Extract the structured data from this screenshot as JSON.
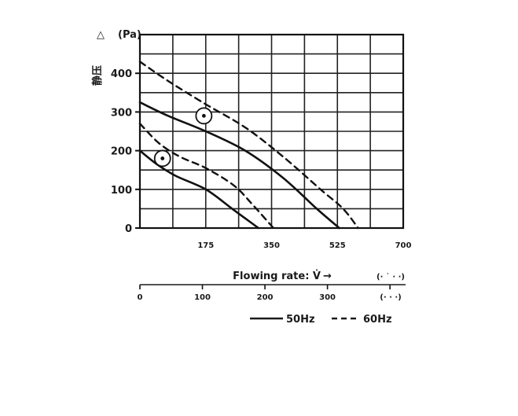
{
  "chart_data": {
    "type": "line",
    "y_axis": {
      "label_cjk": "静压",
      "label_symbol": "△",
      "unit": "(Pa)",
      "ticks": [
        0,
        100,
        200,
        300,
        400
      ],
      "ylim": [
        0,
        500
      ]
    },
    "x_axis_main": {
      "ticks": [
        "175",
        "350",
        "525",
        "700"
      ],
      "xlim": [
        0,
        700
      ]
    },
    "x_axis_secondary": {
      "label": "Flowing rate: V̇",
      "arrow": "→",
      "unit_top": "(· ˙ · ·)",
      "unit_bottom": "(· · ·)",
      "ticks": [
        "0",
        "100",
        "200",
        "300"
      ],
      "xlim": [
        0,
        425
      ]
    },
    "grid": true,
    "series": [
      {
        "name": "50Hz",
        "style": "solid",
        "curve": "upper",
        "x": [
          0,
          75,
          175,
          280,
          380,
          470,
          530
        ],
        "y": [
          325,
          290,
          250,
          200,
          130,
          50,
          0
        ]
      },
      {
        "name": "60Hz",
        "style": "dashed",
        "curve": "upper",
        "x": [
          0,
          75,
          175,
          280,
          380,
          480,
          540,
          580
        ],
        "y": [
          430,
          380,
          320,
          260,
          185,
          100,
          50,
          0
        ]
      },
      {
        "name": "50Hz",
        "style": "solid",
        "curve": "lower",
        "x": [
          0,
          45,
          95,
          175,
          245,
          280,
          315
        ],
        "y": [
          200,
          165,
          135,
          100,
          50,
          25,
          0
        ]
      },
      {
        "name": "60Hz",
        "style": "dashed",
        "curve": "lower",
        "x": [
          0,
          50,
          105,
          175,
          250,
          300,
          355
        ],
        "y": [
          270,
          220,
          185,
          155,
          110,
          60,
          0
        ]
      }
    ],
    "markers": [
      {
        "x": 170,
        "y": 290
      },
      {
        "x": 60,
        "y": 180
      }
    ],
    "legend": [
      {
        "label": "50Hz",
        "style": "solid"
      },
      {
        "label": "60Hz",
        "style": "dashed"
      }
    ],
    "legend_position": "bottom-right"
  }
}
